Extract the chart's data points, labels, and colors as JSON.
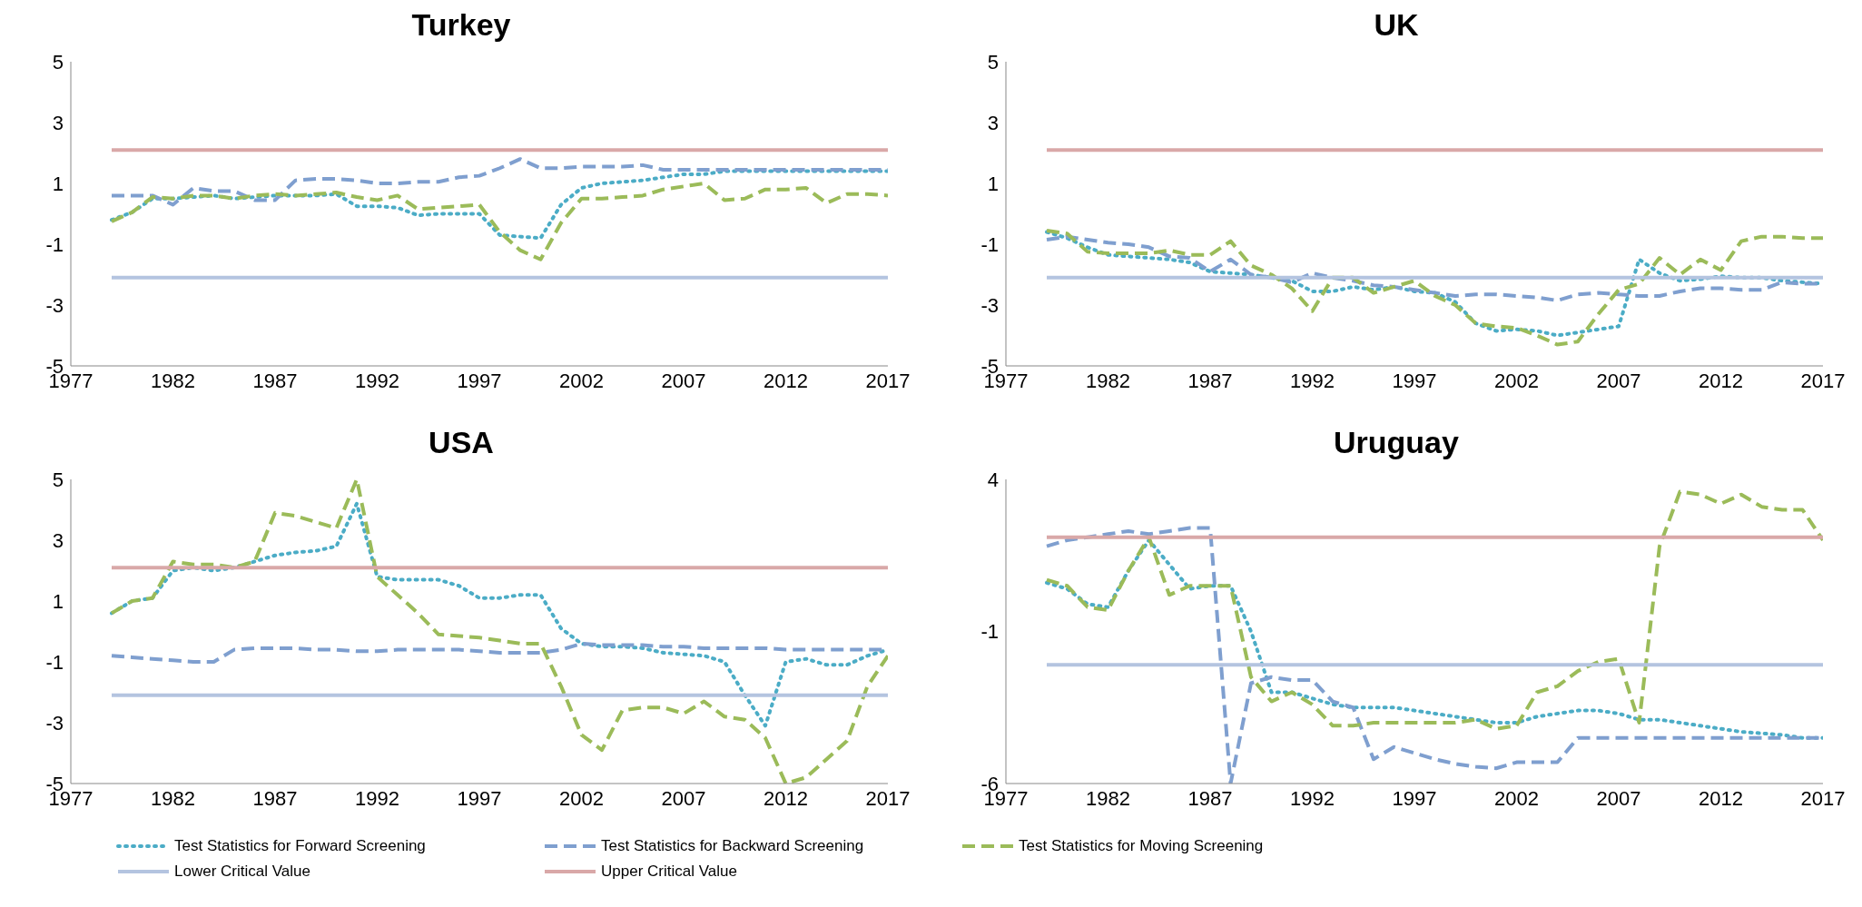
{
  "chart_data": [
    {
      "type": "line",
      "title": "Turkey",
      "legend": "bottom",
      "x": [
        1979,
        1980,
        1981,
        1982,
        1983,
        1984,
        1985,
        1986,
        1987,
        1988,
        1989,
        1990,
        1991,
        1992,
        1993,
        1994,
        1995,
        1996,
        1997,
        1998,
        1999,
        2000,
        2001,
        2002,
        2003,
        2004,
        2005,
        2006,
        2007,
        2008,
        2009,
        2010,
        2011,
        2012,
        2013,
        2014,
        2015,
        2016,
        2017
      ],
      "xlim": [
        1977,
        2017
      ],
      "xticks": [
        1977,
        1982,
        1987,
        1992,
        1997,
        2002,
        2007,
        2012,
        2017
      ],
      "ylim": [
        -5,
        5
      ],
      "yticks": [
        -5,
        -3,
        -1,
        1,
        3,
        5
      ],
      "marker": "none",
      "series": [
        {
          "name": "Test Statistics for Forward Screening",
          "color": "#4bacc6",
          "line_style": "dotted",
          "values": [
            -0.2,
            0.05,
            0.5,
            0.5,
            0.55,
            0.6,
            0.5,
            0.55,
            0.6,
            0.6,
            0.6,
            0.65,
            0.25,
            0.25,
            0.2,
            -0.05,
            0,
            0,
            0,
            -0.7,
            -0.75,
            -0.8,
            0.3,
            0.85,
            1.0,
            1.05,
            1.1,
            1.2,
            1.3,
            1.3,
            1.4,
            1.4,
            1.4,
            1.4,
            1.4,
            1.4,
            1.4,
            1.4,
            1.4
          ]
        },
        {
          "name": "Test Statistics for Backward Screening",
          "color": "#7f9fcf",
          "line_style": "dashed",
          "values": [
            0.6,
            0.6,
            0.6,
            0.3,
            0.85,
            0.75,
            0.75,
            0.45,
            0.45,
            1.1,
            1.15,
            1.15,
            1.1,
            1.0,
            1.0,
            1.05,
            1.05,
            1.2,
            1.25,
            1.5,
            1.8,
            1.5,
            1.5,
            1.55,
            1.55,
            1.55,
            1.6,
            1.45,
            1.45,
            1.45,
            1.45,
            1.45,
            1.45,
            1.45,
            1.45,
            1.45,
            1.45,
            1.45,
            1.45
          ]
        },
        {
          "name": "Test Statistics for Moving Screening",
          "color": "#9bbb59",
          "line_style": "dashed",
          "values": [
            -0.25,
            0.05,
            0.55,
            0.5,
            0.6,
            0.6,
            0.5,
            0.6,
            0.65,
            0.6,
            0.65,
            0.7,
            0.55,
            0.45,
            0.6,
            0.15,
            0.2,
            0.25,
            0.3,
            -0.6,
            -1.2,
            -1.5,
            -0.3,
            0.5,
            0.5,
            0.55,
            0.6,
            0.8,
            0.9,
            1.0,
            0.45,
            0.5,
            0.8,
            0.8,
            0.85,
            0.35,
            0.65,
            0.65,
            0.6
          ]
        },
        {
          "name": "Lower Critical Value",
          "color": "#b4c4e0",
          "line_style": "solid",
          "values": [
            -2.1,
            -2.1,
            -2.1,
            -2.1,
            -2.1,
            -2.1,
            -2.1,
            -2.1,
            -2.1,
            -2.1,
            -2.1,
            -2.1,
            -2.1,
            -2.1,
            -2.1,
            -2.1,
            -2.1,
            -2.1,
            -2.1,
            -2.1,
            -2.1,
            -2.1,
            -2.1,
            -2.1,
            -2.1,
            -2.1,
            -2.1,
            -2.1,
            -2.1,
            -2.1,
            -2.1,
            -2.1,
            -2.1,
            -2.1,
            -2.1,
            -2.1,
            -2.1,
            -2.1,
            -2.1
          ]
        },
        {
          "name": "Upper Critical Value",
          "color": "#d9a8a8",
          "line_style": "solid",
          "values": [
            2.1,
            2.1,
            2.1,
            2.1,
            2.1,
            2.1,
            2.1,
            2.1,
            2.1,
            2.1,
            2.1,
            2.1,
            2.1,
            2.1,
            2.1,
            2.1,
            2.1,
            2.1,
            2.1,
            2.1,
            2.1,
            2.1,
            2.1,
            2.1,
            2.1,
            2.1,
            2.1,
            2.1,
            2.1,
            2.1,
            2.1,
            2.1,
            2.1,
            2.1,
            2.1,
            2.1,
            2.1,
            2.1,
            2.1
          ]
        }
      ]
    },
    {
      "type": "line",
      "title": "UK",
      "x": [
        1979,
        1980,
        1981,
        1982,
        1983,
        1984,
        1985,
        1986,
        1987,
        1988,
        1989,
        1990,
        1991,
        1992,
        1993,
        1994,
        1995,
        1996,
        1997,
        1998,
        1999,
        2000,
        2001,
        2002,
        2003,
        2004,
        2005,
        2006,
        2007,
        2008,
        2009,
        2010,
        2011,
        2012,
        2013,
        2014,
        2015,
        2016,
        2017
      ],
      "xlim": [
        1977,
        2017
      ],
      "xticks": [
        1977,
        1982,
        1987,
        1992,
        1997,
        2002,
        2007,
        2012,
        2017
      ],
      "ylim": [
        -5,
        5
      ],
      "yticks": [
        -5,
        -3,
        -1,
        1,
        3,
        5
      ],
      "marker": "none",
      "series": [
        {
          "color": "#4bacc6",
          "line_style": "dotted",
          "values": [
            -0.6,
            -0.8,
            -1.1,
            -1.35,
            -1.4,
            -1.45,
            -1.5,
            -1.6,
            -1.9,
            -1.95,
            -2.0,
            -2.1,
            -2.2,
            -2.55,
            -2.55,
            -2.4,
            -2.5,
            -2.4,
            -2.55,
            -2.6,
            -2.9,
            -3.6,
            -3.85,
            -3.8,
            -3.85,
            -4.0,
            -3.9,
            -3.8,
            -3.7,
            -1.5,
            -1.95,
            -2.2,
            -2.15,
            -2.05,
            -2.1,
            -2.1,
            -2.2,
            -2.25,
            -2.3
          ]
        },
        {
          "color": "#7f9fcf",
          "line_style": "dashed",
          "values": [
            -0.85,
            -0.75,
            -0.85,
            -0.95,
            -1.0,
            -1.1,
            -1.4,
            -1.45,
            -1.9,
            -1.5,
            -2.0,
            -2.1,
            -2.25,
            -1.95,
            -2.1,
            -2.2,
            -2.35,
            -2.4,
            -2.5,
            -2.6,
            -2.7,
            -2.65,
            -2.65,
            -2.7,
            -2.75,
            -2.85,
            -2.65,
            -2.6,
            -2.65,
            -2.7,
            -2.7,
            -2.55,
            -2.45,
            -2.45,
            -2.5,
            -2.5,
            -2.25,
            -2.3,
            -2.3
          ]
        },
        {
          "color": "#9bbb59",
          "line_style": "dashed",
          "values": [
            -0.55,
            -0.65,
            -1.25,
            -1.3,
            -1.3,
            -1.3,
            -1.2,
            -1.35,
            -1.35,
            -0.9,
            -1.7,
            -2.0,
            -2.45,
            -3.2,
            -2.1,
            -2.1,
            -2.6,
            -2.4,
            -2.2,
            -2.7,
            -3.0,
            -3.6,
            -3.7,
            -3.75,
            -4.0,
            -4.3,
            -4.2,
            -3.3,
            -2.5,
            -2.3,
            -1.45,
            -2.0,
            -1.5,
            -1.85,
            -0.9,
            -0.75,
            -0.75,
            -0.8,
            -0.8
          ]
        },
        {
          "color": "#b4c4e0",
          "line_style": "solid",
          "values": [
            -2.1,
            -2.1,
            -2.1,
            -2.1,
            -2.1,
            -2.1,
            -2.1,
            -2.1,
            -2.1,
            -2.1,
            -2.1,
            -2.1,
            -2.1,
            -2.1,
            -2.1,
            -2.1,
            -2.1,
            -2.1,
            -2.1,
            -2.1,
            -2.1,
            -2.1,
            -2.1,
            -2.1,
            -2.1,
            -2.1,
            -2.1,
            -2.1,
            -2.1,
            -2.1,
            -2.1,
            -2.1,
            -2.1,
            -2.1,
            -2.1,
            -2.1,
            -2.1,
            -2.1,
            -2.1
          ]
        },
        {
          "color": "#d9a8a8",
          "line_style": "solid",
          "values": [
            2.1,
            2.1,
            2.1,
            2.1,
            2.1,
            2.1,
            2.1,
            2.1,
            2.1,
            2.1,
            2.1,
            2.1,
            2.1,
            2.1,
            2.1,
            2.1,
            2.1,
            2.1,
            2.1,
            2.1,
            2.1,
            2.1,
            2.1,
            2.1,
            2.1,
            2.1,
            2.1,
            2.1,
            2.1,
            2.1,
            2.1,
            2.1,
            2.1,
            2.1,
            2.1,
            2.1,
            2.1,
            2.1,
            2.1
          ]
        }
      ]
    },
    {
      "type": "line",
      "title": "USA",
      "x": [
        1979,
        1980,
        1981,
        1982,
        1983,
        1984,
        1985,
        1986,
        1987,
        1988,
        1989,
        1990,
        1991,
        1992,
        1993,
        1994,
        1995,
        1996,
        1997,
        1998,
        1999,
        2000,
        2001,
        2002,
        2003,
        2004,
        2005,
        2006,
        2007,
        2008,
        2009,
        2010,
        2011,
        2012,
        2013,
        2014,
        2015,
        2016,
        2017
      ],
      "xlim": [
        1977,
        2017
      ],
      "xticks": [
        1977,
        1982,
        1987,
        1992,
        1997,
        2002,
        2007,
        2012,
        2017
      ],
      "ylim": [
        -5,
        5
      ],
      "yticks": [
        -5,
        -3,
        -1,
        1,
        3,
        5
      ],
      "marker": "none",
      "series": [
        {
          "color": "#4bacc6",
          "line_style": "dotted",
          "values": [
            0.6,
            1.0,
            1.1,
            2.0,
            2.1,
            2.0,
            2.1,
            2.3,
            2.5,
            2.6,
            2.65,
            2.8,
            4.2,
            1.8,
            1.7,
            1.7,
            1.7,
            1.5,
            1.1,
            1.1,
            1.2,
            1.2,
            0.1,
            -0.4,
            -0.5,
            -0.5,
            -0.55,
            -0.7,
            -0.75,
            -0.8,
            -1.0,
            -2.1,
            -3.1,
            -1.0,
            -0.9,
            -1.1,
            -1.1,
            -0.8,
            -0.6
          ]
        },
        {
          "color": "#7f9fcf",
          "line_style": "dashed",
          "values": [
            -0.8,
            -0.85,
            -0.9,
            -0.95,
            -1.0,
            -1.0,
            -0.6,
            -0.55,
            -0.55,
            -0.55,
            -0.6,
            -0.6,
            -0.65,
            -0.65,
            -0.6,
            -0.6,
            -0.6,
            -0.6,
            -0.65,
            -0.7,
            -0.7,
            -0.7,
            -0.6,
            -0.4,
            -0.45,
            -0.45,
            -0.45,
            -0.5,
            -0.5,
            -0.55,
            -0.55,
            -0.55,
            -0.55,
            -0.6,
            -0.6,
            -0.6,
            -0.6,
            -0.6,
            -0.6
          ]
        },
        {
          "color": "#9bbb59",
          "line_style": "dashed",
          "values": [
            0.6,
            1.0,
            1.1,
            2.3,
            2.2,
            2.2,
            2.1,
            2.3,
            3.9,
            3.8,
            3.6,
            3.4,
            5.0,
            1.8,
            1.2,
            0.6,
            -0.1,
            -0.15,
            -0.2,
            -0.3,
            -0.4,
            -0.4,
            -1.8,
            -3.4,
            -3.9,
            -2.6,
            -2.5,
            -2.5,
            -2.7,
            -2.3,
            -2.8,
            -2.9,
            -3.5,
            -5.0,
            -4.8,
            -4.2,
            -3.6,
            -1.8,
            -0.8
          ]
        },
        {
          "color": "#b4c4e0",
          "line_style": "solid",
          "values": [
            -2.1,
            -2.1,
            -2.1,
            -2.1,
            -2.1,
            -2.1,
            -2.1,
            -2.1,
            -2.1,
            -2.1,
            -2.1,
            -2.1,
            -2.1,
            -2.1,
            -2.1,
            -2.1,
            -2.1,
            -2.1,
            -2.1,
            -2.1,
            -2.1,
            -2.1,
            -2.1,
            -2.1,
            -2.1,
            -2.1,
            -2.1,
            -2.1,
            -2.1,
            -2.1,
            -2.1,
            -2.1,
            -2.1,
            -2.1,
            -2.1,
            -2.1,
            -2.1,
            -2.1,
            -2.1
          ]
        },
        {
          "color": "#d9a8a8",
          "line_style": "solid",
          "values": [
            2.1,
            2.1,
            2.1,
            2.1,
            2.1,
            2.1,
            2.1,
            2.1,
            2.1,
            2.1,
            2.1,
            2.1,
            2.1,
            2.1,
            2.1,
            2.1,
            2.1,
            2.1,
            2.1,
            2.1,
            2.1,
            2.1,
            2.1,
            2.1,
            2.1,
            2.1,
            2.1,
            2.1,
            2.1,
            2.1,
            2.1,
            2.1,
            2.1,
            2.1,
            2.1,
            2.1,
            2.1,
            2.1,
            2.1
          ]
        }
      ]
    },
    {
      "type": "line",
      "title": "Uruguay",
      "x": [
        1979,
        1980,
        1981,
        1982,
        1983,
        1984,
        1985,
        1986,
        1987,
        1988,
        1989,
        1990,
        1991,
        1992,
        1993,
        1994,
        1995,
        1996,
        1997,
        1998,
        1999,
        2000,
        2001,
        2002,
        2003,
        2004,
        2005,
        2006,
        2007,
        2008,
        2009,
        2010,
        2011,
        2012,
        2013,
        2014,
        2015,
        2016,
        2017
      ],
      "xlim": [
        1977,
        2017
      ],
      "xticks": [
        1977,
        1982,
        1987,
        1992,
        1997,
        2002,
        2007,
        2012,
        2017
      ],
      "ylim": [
        -6,
        4
      ],
      "yticks": [
        -6,
        -1,
        4
      ],
      "marker": "none",
      "series": [
        {
          "color": "#4bacc6",
          "line_style": "dotted",
          "values": [
            0.6,
            0.4,
            -0.1,
            -0.2,
            1.0,
            2.0,
            1.2,
            0.4,
            0.5,
            0.5,
            -1.0,
            -3.0,
            -3.0,
            -3.2,
            -3.4,
            -3.5,
            -3.5,
            -3.5,
            -3.6,
            -3.7,
            -3.8,
            -3.9,
            -4.0,
            -4.0,
            -3.8,
            -3.7,
            -3.6,
            -3.6,
            -3.7,
            -3.9,
            -3.9,
            -4.0,
            -4.1,
            -4.2,
            -4.3,
            -4.35,
            -4.4,
            -4.5,
            -4.5
          ]
        },
        {
          "color": "#7f9fcf",
          "line_style": "dashed",
          "values": [
            1.8,
            2.0,
            2.1,
            2.2,
            2.3,
            2.2,
            2.3,
            2.4,
            2.4,
            -6.0,
            -2.7,
            -2.5,
            -2.6,
            -2.6,
            -3.3,
            -3.5,
            -5.2,
            -4.8,
            -5.0,
            -5.2,
            -5.35,
            -5.45,
            -5.5,
            -5.3,
            -5.3,
            -5.3,
            -4.5,
            -4.5,
            -4.5,
            -4.5,
            -4.5,
            -4.5,
            -4.5,
            -4.5,
            -4.5,
            -4.5,
            -4.5,
            -4.5,
            -4.5
          ]
        },
        {
          "color": "#9bbb59",
          "line_style": "dashed",
          "values": [
            0.7,
            0.5,
            -0.2,
            -0.3,
            1.0,
            2.1,
            0.2,
            0.5,
            0.5,
            0.5,
            -2.5,
            -3.3,
            -3.0,
            -3.4,
            -4.1,
            -4.1,
            -4.0,
            -4.0,
            -4.0,
            -4.0,
            -4.0,
            -3.9,
            -4.2,
            -4.1,
            -3.0,
            -2.8,
            -2.3,
            -2.0,
            -1.9,
            -4.0,
            1.8,
            3.6,
            3.5,
            3.2,
            3.5,
            3.1,
            3.0,
            3.0,
            2.0
          ]
        },
        {
          "color": "#b4c4e0",
          "line_style": "solid",
          "values": [
            -2.1,
            -2.1,
            -2.1,
            -2.1,
            -2.1,
            -2.1,
            -2.1,
            -2.1,
            -2.1,
            -2.1,
            -2.1,
            -2.1,
            -2.1,
            -2.1,
            -2.1,
            -2.1,
            -2.1,
            -2.1,
            -2.1,
            -2.1,
            -2.1,
            -2.1,
            -2.1,
            -2.1,
            -2.1,
            -2.1,
            -2.1,
            -2.1,
            -2.1,
            -2.1,
            -2.1,
            -2.1,
            -2.1,
            -2.1,
            -2.1,
            -2.1,
            -2.1,
            -2.1,
            -2.1
          ]
        },
        {
          "color": "#d9a8a8",
          "line_style": "solid",
          "values": [
            2.1,
            2.1,
            2.1,
            2.1,
            2.1,
            2.1,
            2.1,
            2.1,
            2.1,
            2.1,
            2.1,
            2.1,
            2.1,
            2.1,
            2.1,
            2.1,
            2.1,
            2.1,
            2.1,
            2.1,
            2.1,
            2.1,
            2.1,
            2.1,
            2.1,
            2.1,
            2.1,
            2.1,
            2.1,
            2.1,
            2.1,
            2.1,
            2.1,
            2.1,
            2.1,
            2.1,
            2.1,
            2.1,
            2.1
          ]
        }
      ]
    }
  ]
}
